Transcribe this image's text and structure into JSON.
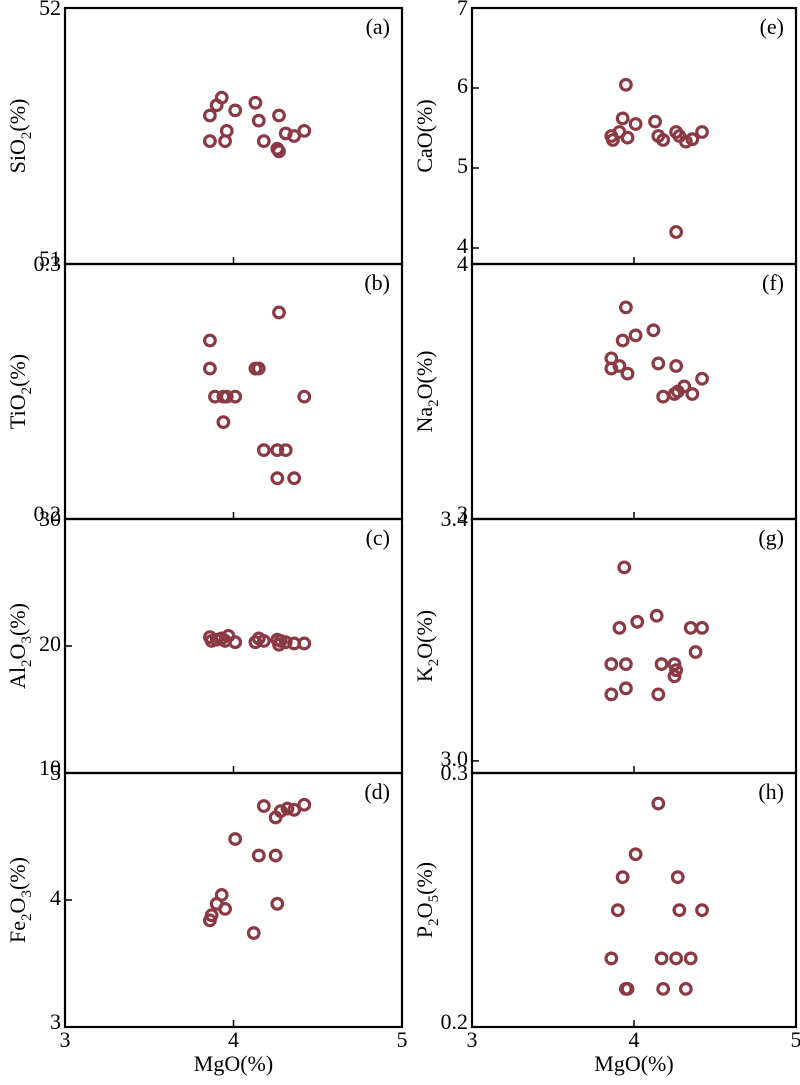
{
  "chart_data": [
    {
      "panel": "(a)",
      "type": "scatter",
      "xlabel": "MgO(%)",
      "ylabel": "SiO2(%)",
      "ylabel_parts": [
        "SiO",
        "2",
        "(%)"
      ],
      "ylim": [
        51,
        52
      ],
      "yticks": [
        "52",
        "51"
      ],
      "xlim": [
        3,
        5
      ],
      "xticks": [],
      "points": [
        [
          3.86,
          51.48
        ],
        [
          3.86,
          51.58
        ],
        [
          3.9,
          51.62
        ],
        [
          3.93,
          51.65
        ],
        [
          3.95,
          51.48
        ],
        [
          3.96,
          51.52
        ],
        [
          4.01,
          51.6
        ],
        [
          4.13,
          51.63
        ],
        [
          4.15,
          51.56
        ],
        [
          4.18,
          51.48
        ],
        [
          4.26,
          51.45
        ],
        [
          4.27,
          51.44
        ],
        [
          4.27,
          51.58
        ],
        [
          4.31,
          51.51
        ],
        [
          4.36,
          51.5
        ],
        [
          4.42,
          51.52
        ]
      ]
    },
    {
      "panel": "(b)",
      "type": "scatter",
      "xlabel": "MgO(%)",
      "ylabel": "TiO2(%)",
      "ylabel_parts": [
        "TiO",
        "2",
        "(%)"
      ],
      "ylim": [
        0.2,
        0.3
      ],
      "yticks": [
        "0.3",
        "0.2"
      ],
      "xlim": [
        3,
        5
      ],
      "xticks": [],
      "points": [
        [
          3.86,
          0.27
        ],
        [
          3.86,
          0.259
        ],
        [
          3.89,
          0.248
        ],
        [
          3.94,
          0.248
        ],
        [
          3.94,
          0.238
        ],
        [
          3.96,
          0.248
        ],
        [
          4.01,
          0.248
        ],
        [
          4.13,
          0.259
        ],
        [
          4.15,
          0.259
        ],
        [
          4.18,
          0.227
        ],
        [
          4.26,
          0.227
        ],
        [
          4.26,
          0.216
        ],
        [
          4.27,
          0.281
        ],
        [
          4.31,
          0.227
        ],
        [
          4.36,
          0.216
        ],
        [
          4.42,
          0.248
        ]
      ]
    },
    {
      "panel": "(c)",
      "type": "scatter",
      "xlabel": "MgO(%)",
      "ylabel": "Al2O3(%)",
      "ylabel_parts": [
        "Al",
        "2",
        "O",
        "3",
        "(%)"
      ],
      "ylim": [
        10,
        30
      ],
      "yticks": [
        "30",
        "20",
        "10"
      ],
      "xlim": [
        3,
        5
      ],
      "xticks": [],
      "points": [
        [
          3.86,
          20.7
        ],
        [
          3.87,
          20.4
        ],
        [
          3.9,
          20.5
        ],
        [
          3.93,
          20.6
        ],
        [
          3.95,
          20.4
        ],
        [
          3.97,
          20.8
        ],
        [
          4.01,
          20.3
        ],
        [
          4.13,
          20.3
        ],
        [
          4.15,
          20.6
        ],
        [
          4.18,
          20.4
        ],
        [
          4.26,
          20.5
        ],
        [
          4.27,
          20.1
        ],
        [
          4.28,
          20.4
        ],
        [
          4.31,
          20.3
        ],
        [
          4.36,
          20.2
        ],
        [
          4.42,
          20.2
        ]
      ]
    },
    {
      "panel": "(d)",
      "type": "scatter",
      "xlabel": "MgO(%)",
      "ylabel": "Fe2O3(%)",
      "ylabel_parts": [
        "Fe",
        "2",
        "O",
        "3",
        "(%)"
      ],
      "ylim": [
        3,
        5
      ],
      "yticks": [
        "5",
        "4",
        "3"
      ],
      "xlim": [
        3,
        5
      ],
      "xticks": [
        "3",
        "4",
        "5"
      ],
      "points": [
        [
          3.86,
          3.84
        ],
        [
          3.87,
          3.88
        ],
        [
          3.9,
          3.97
        ],
        [
          3.93,
          4.04
        ],
        [
          3.95,
          3.93
        ],
        [
          4.01,
          4.48
        ],
        [
          4.12,
          3.74
        ],
        [
          4.15,
          4.35
        ],
        [
          4.18,
          4.74
        ],
        [
          4.25,
          4.65
        ],
        [
          4.25,
          4.35
        ],
        [
          4.26,
          3.97
        ],
        [
          4.28,
          4.7
        ],
        [
          4.32,
          4.72
        ],
        [
          4.36,
          4.71
        ],
        [
          4.42,
          4.75
        ]
      ]
    },
    {
      "panel": "(e)",
      "type": "scatter",
      "xlabel": "MgO(%)",
      "ylabel": "CaO(%)",
      "ylabel_parts": [
        "CaO(%)"
      ],
      "ylim": [
        3.8,
        7
      ],
      "yticks": [
        "7",
        "6",
        "5",
        "4"
      ],
      "xlim": [
        3,
        5
      ],
      "xticks": [],
      "points": [
        [
          3.86,
          5.4
        ],
        [
          3.87,
          5.35
        ],
        [
          3.91,
          5.45
        ],
        [
          3.93,
          5.62
        ],
        [
          3.95,
          6.04
        ],
        [
          3.96,
          5.38
        ],
        [
          4.01,
          5.55
        ],
        [
          4.13,
          5.58
        ],
        [
          4.15,
          5.4
        ],
        [
          4.18,
          5.35
        ],
        [
          4.26,
          4.2
        ],
        [
          4.26,
          5.45
        ],
        [
          4.28,
          5.4
        ],
        [
          4.32,
          5.33
        ],
        [
          4.36,
          5.36
        ],
        [
          4.42,
          5.45
        ]
      ]
    },
    {
      "panel": "(f)",
      "type": "scatter",
      "xlabel": "MgO(%)",
      "ylabel": "Na2O(%)",
      "ylabel_parts": [
        "Na",
        "2",
        "O(%)"
      ],
      "ylim": [
        3,
        4
      ],
      "yticks": [
        "4",
        "3"
      ],
      "xlim": [
        3,
        5
      ],
      "xticks": [],
      "points": [
        [
          3.86,
          3.59
        ],
        [
          3.86,
          3.63
        ],
        [
          3.91,
          3.6
        ],
        [
          3.93,
          3.7
        ],
        [
          3.95,
          3.83
        ],
        [
          3.96,
          3.57
        ],
        [
          4.01,
          3.72
        ],
        [
          4.12,
          3.74
        ],
        [
          4.15,
          3.61
        ],
        [
          4.18,
          3.48
        ],
        [
          4.25,
          3.49
        ],
        [
          4.26,
          3.6
        ],
        [
          4.27,
          3.5
        ],
        [
          4.31,
          3.52
        ],
        [
          4.36,
          3.49
        ],
        [
          4.42,
          3.55
        ]
      ]
    },
    {
      "panel": "(g)",
      "type": "scatter",
      "xlabel": "MgO(%)",
      "ylabel": "K2O(%)",
      "ylabel_parts": [
        "K",
        "2",
        "O(%)"
      ],
      "ylim": [
        2.98,
        3.4
      ],
      "yticks": [
        "3.4",
        "3.0"
      ],
      "xlim": [
        3,
        5
      ],
      "xticks": [],
      "points": [
        [
          3.86,
          3.11
        ],
        [
          3.86,
          3.16
        ],
        [
          3.91,
          3.22
        ],
        [
          3.94,
          3.32
        ],
        [
          3.95,
          3.12
        ],
        [
          3.95,
          3.16
        ],
        [
          4.02,
          3.23
        ],
        [
          4.14,
          3.24
        ],
        [
          4.15,
          3.11
        ],
        [
          4.17,
          3.16
        ],
        [
          4.25,
          3.16
        ],
        [
          4.25,
          3.14
        ],
        [
          4.26,
          3.15
        ],
        [
          4.35,
          3.22
        ],
        [
          4.38,
          3.18
        ],
        [
          4.42,
          3.22
        ]
      ]
    },
    {
      "panel": "(h)",
      "type": "scatter",
      "xlabel": "MgO(%)",
      "ylabel": "P2O5(%)",
      "ylabel_parts": [
        "P",
        "2",
        "O",
        "5",
        "(%)"
      ],
      "ylim": [
        0.2,
        0.3
      ],
      "yticks": [
        "0.3",
        "0.2"
      ],
      "xlim": [
        3,
        5
      ],
      "xticks": [
        "3",
        "4",
        "5"
      ],
      "points": [
        [
          3.86,
          0.227
        ],
        [
          3.9,
          0.246
        ],
        [
          3.93,
          0.259
        ],
        [
          3.95,
          0.215
        ],
        [
          3.96,
          0.215
        ],
        [
          4.01,
          0.268
        ],
        [
          4.15,
          0.288
        ],
        [
          4.17,
          0.227
        ],
        [
          4.18,
          0.215
        ],
        [
          4.26,
          0.227
        ],
        [
          4.27,
          0.259
        ],
        [
          4.28,
          0.246
        ],
        [
          4.32,
          0.215
        ],
        [
          4.35,
          0.227
        ],
        [
          4.42,
          0.246
        ]
      ]
    }
  ]
}
